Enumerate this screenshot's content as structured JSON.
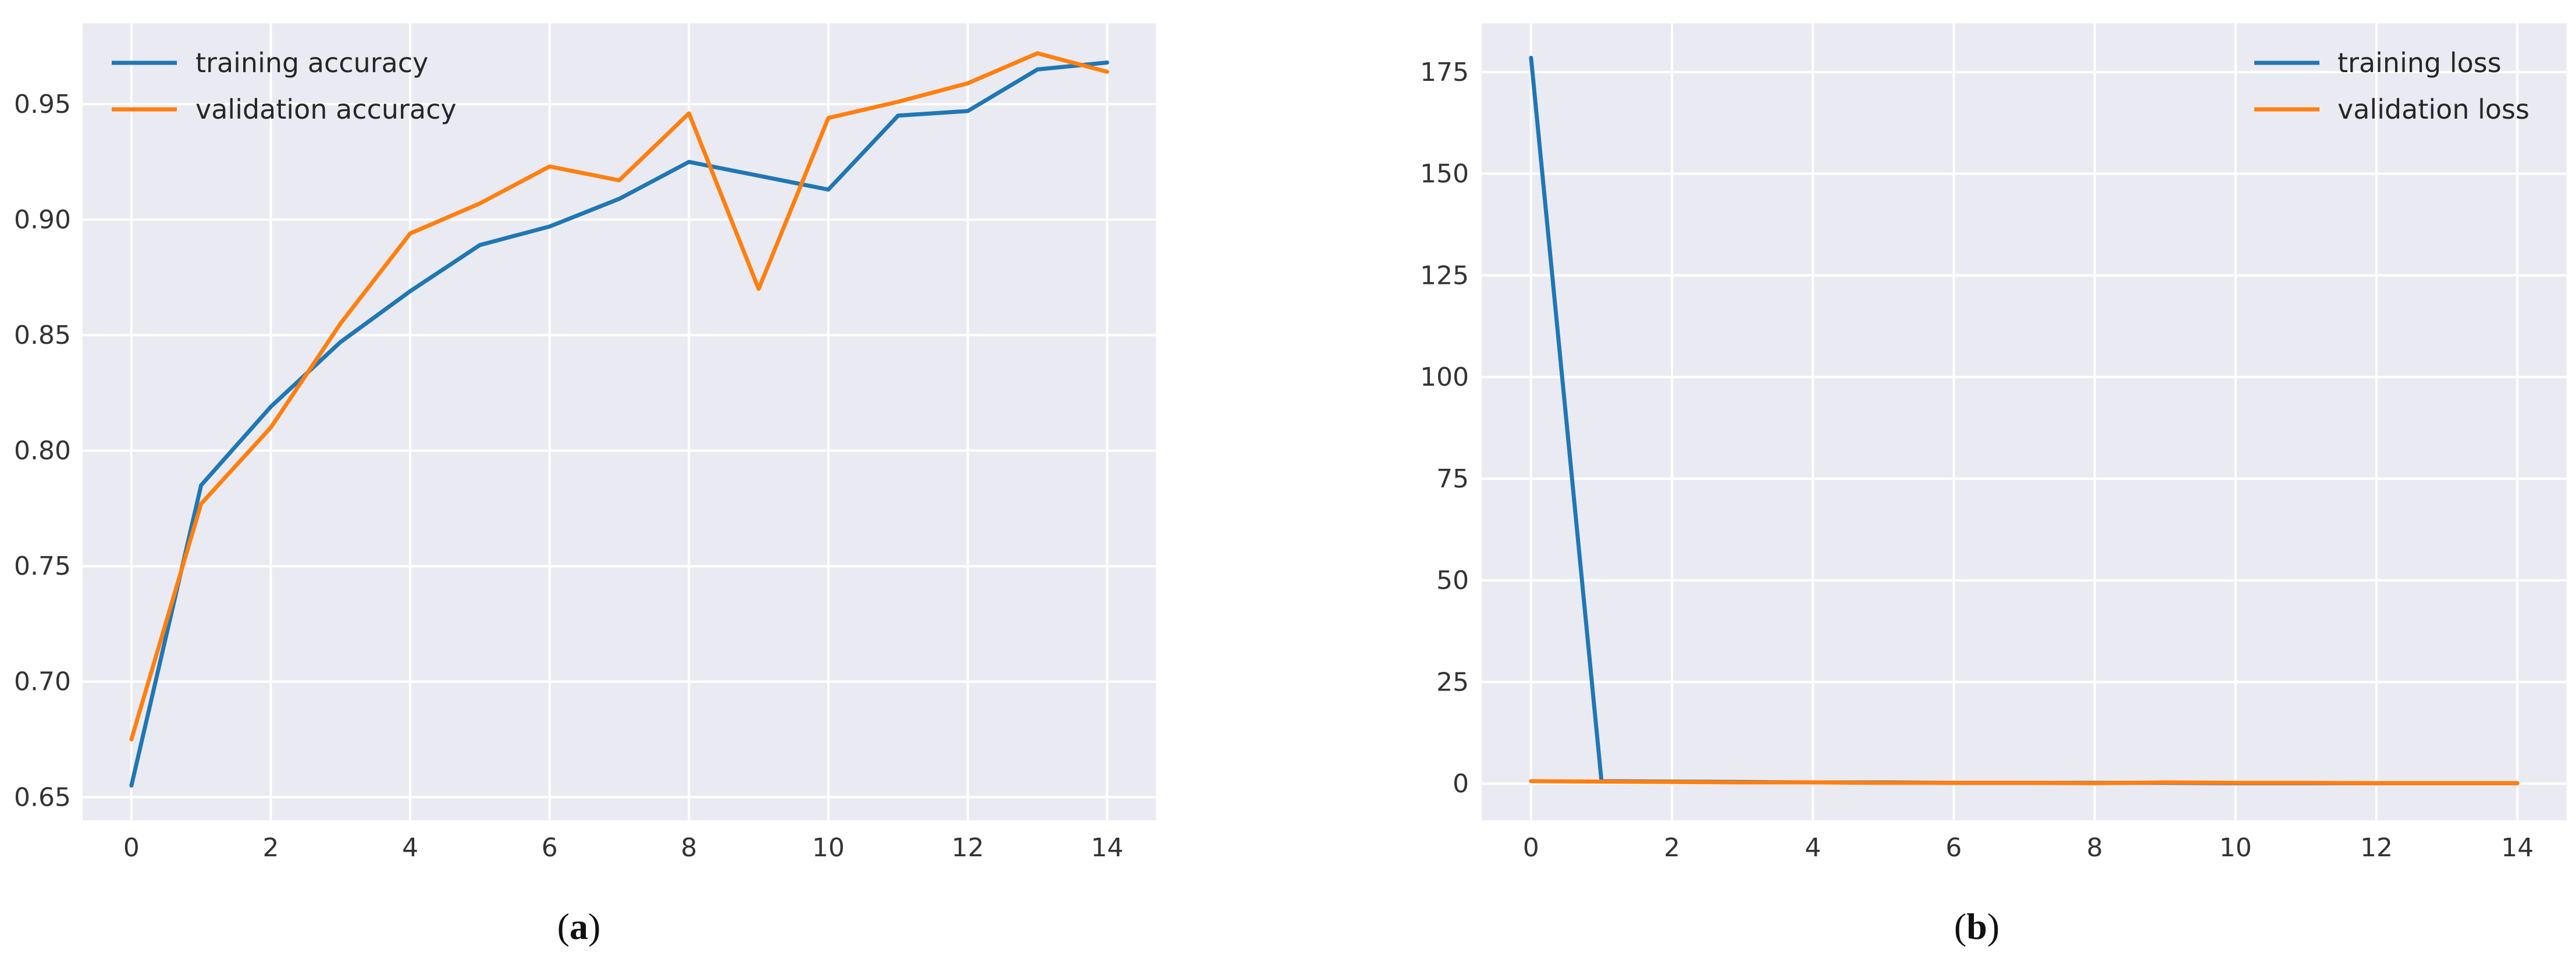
{
  "figure": {
    "panels": [
      {
        "caption_letter": "a"
      },
      {
        "caption_letter": "b"
      }
    ]
  },
  "colors": {
    "training": "#1f77b4",
    "validation": "#ff7f0e",
    "plot_background": "#eaeaf2",
    "grid": "#ffffff"
  },
  "chart_data": [
    {
      "type": "line",
      "x": [
        0,
        1,
        2,
        3,
        4,
        5,
        6,
        7,
        8,
        9,
        10,
        11,
        12,
        13,
        14
      ],
      "series": [
        {
          "name": "training accuracy",
          "color": "#1f77b4",
          "values": [
            0.655,
            0.785,
            0.819,
            0.847,
            0.869,
            0.889,
            0.897,
            0.909,
            0.925,
            0.919,
            0.913,
            0.945,
            0.947,
            0.965,
            0.968
          ]
        },
        {
          "name": "validation accuracy",
          "color": "#ff7f0e",
          "values": [
            0.675,
            0.777,
            0.81,
            0.855,
            0.894,
            0.907,
            0.923,
            0.917,
            0.946,
            0.87,
            0.944,
            0.951,
            0.959,
            0.972,
            0.964
          ]
        }
      ],
      "xlim": [
        -0.7,
        14.7
      ],
      "ylim": [
        0.64,
        0.985
      ],
      "xticks": [
        0,
        2,
        4,
        6,
        8,
        10,
        12,
        14
      ],
      "yticks": [
        0.65,
        0.7,
        0.75,
        0.8,
        0.85,
        0.9,
        0.95
      ],
      "ytick_labels": [
        "0.65",
        "0.70",
        "0.75",
        "0.80",
        "0.85",
        "0.90",
        "0.95"
      ],
      "legend_position": "top-left",
      "grid": true,
      "title": "",
      "xlabel": "",
      "ylabel": ""
    },
    {
      "type": "line",
      "x": [
        0,
        1,
        2,
        3,
        4,
        5,
        6,
        7,
        8,
        9,
        10,
        11,
        12,
        13,
        14
      ],
      "series": [
        {
          "name": "training loss",
          "color": "#1f77b4",
          "values": [
            178.5,
            0.6,
            0.5,
            0.4,
            0.3,
            0.3,
            0.2,
            0.2,
            0.2,
            0.2,
            0.1,
            0.1,
            0.1,
            0.1,
            0.1
          ]
        },
        {
          "name": "validation loss",
          "color": "#ff7f0e",
          "values": [
            0.6,
            0.5,
            0.4,
            0.3,
            0.3,
            0.2,
            0.2,
            0.2,
            0.1,
            0.3,
            0.2,
            0.2,
            0.1,
            0.1,
            0.1
          ]
        }
      ],
      "xlim": [
        -0.7,
        14.7
      ],
      "ylim": [
        -9,
        187
      ],
      "xticks": [
        0,
        2,
        4,
        6,
        8,
        10,
        12,
        14
      ],
      "yticks": [
        0,
        25,
        50,
        75,
        100,
        125,
        150,
        175
      ],
      "ytick_labels": [
        "0",
        "25",
        "50",
        "75",
        "100",
        "125",
        "150",
        "175"
      ],
      "legend_position": "top-right",
      "grid": true,
      "title": "",
      "xlabel": "",
      "ylabel": ""
    }
  ]
}
